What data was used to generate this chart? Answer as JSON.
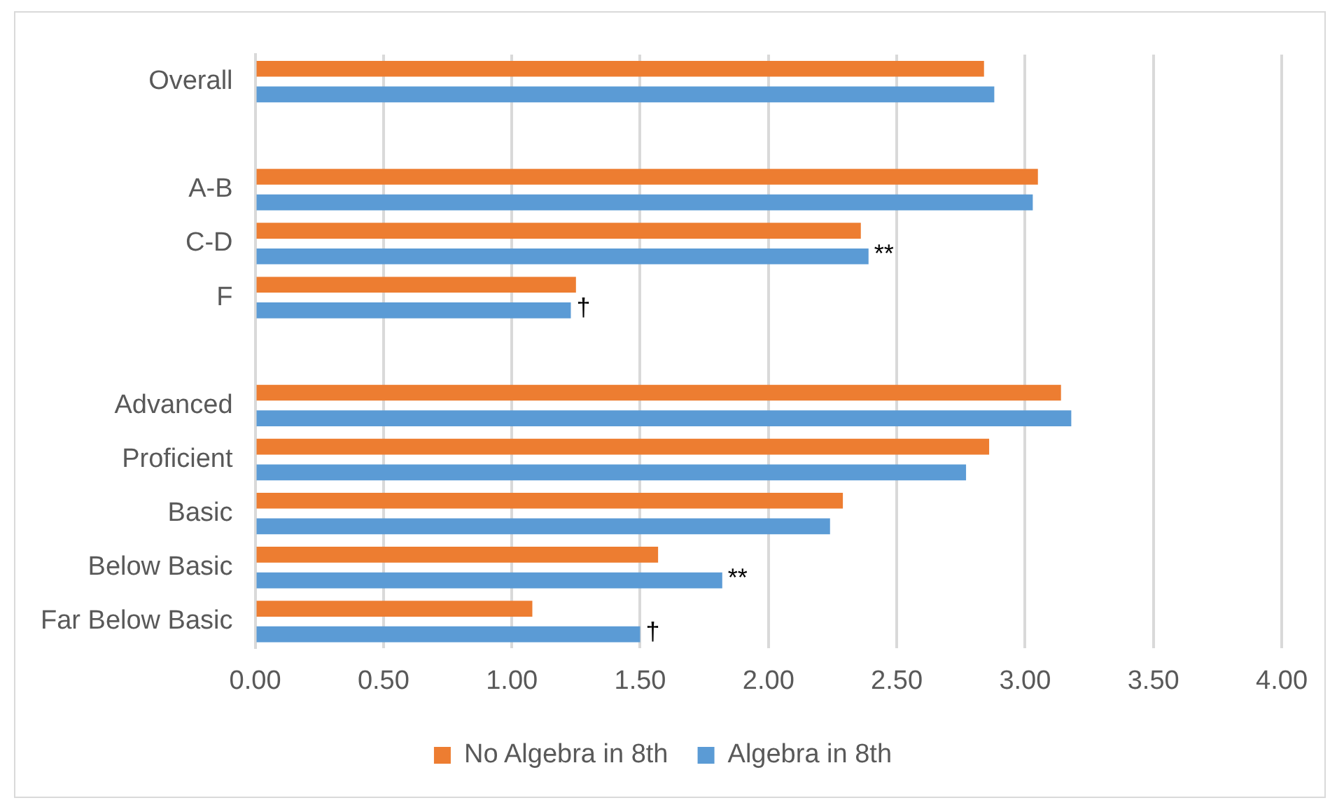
{
  "chart_data": {
    "type": "bar",
    "orientation": "horizontal",
    "categories": [
      "Overall",
      null,
      "A-B",
      "C-D",
      "F",
      null,
      "Advanced",
      "Proficient",
      "Basic",
      "Below Basic",
      "Far Below Basic"
    ],
    "series": [
      {
        "name": "No Algebra in 8th",
        "color": "#ed7d31",
        "values": [
          2.84,
          null,
          3.05,
          2.36,
          1.25,
          null,
          3.14,
          2.86,
          2.29,
          1.57,
          1.08
        ]
      },
      {
        "name": "Algebra in 8th",
        "color": "#5b9bd5",
        "values": [
          2.88,
          null,
          3.03,
          2.39,
          1.23,
          null,
          3.18,
          2.77,
          2.24,
          1.82,
          1.5
        ]
      }
    ],
    "xlim": [
      0,
      4
    ],
    "xticks": [
      {
        "value": 0,
        "label": "0.00"
      },
      {
        "value": 0.5,
        "label": "0.50"
      },
      {
        "value": 1,
        "label": "1.00"
      },
      {
        "value": 1.5,
        "label": "1.50"
      },
      {
        "value": 2,
        "label": "2.00"
      },
      {
        "value": 2.5,
        "label": "2.50"
      },
      {
        "value": 3,
        "label": "3.00"
      },
      {
        "value": 3.5,
        "label": "3.50"
      },
      {
        "value": 4,
        "label": "4.00"
      }
    ],
    "grid": "x",
    "legend": "bottom",
    "annotations": [
      {
        "text": "**",
        "x": 2.39,
        "y": "C-D"
      },
      {
        "text": "†",
        "x": 1.23,
        "y": "F"
      },
      {
        "text": "**",
        "x": 1.82,
        "y": "Below Basic"
      },
      {
        "text": "†",
        "x": 1.5,
        "y": "Far Below Basic"
      }
    ]
  }
}
